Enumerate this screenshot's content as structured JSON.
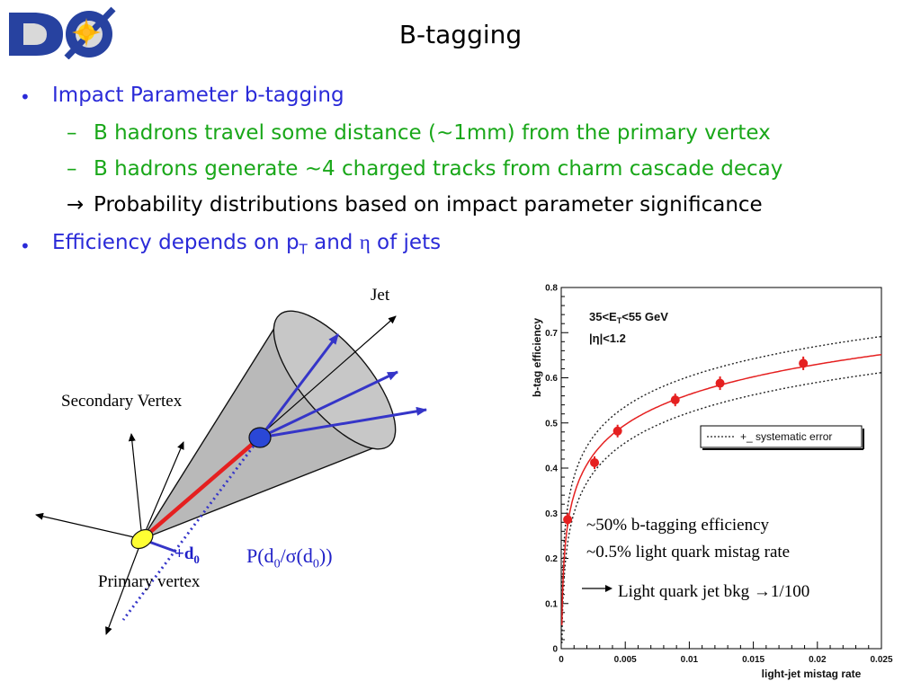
{
  "slide": {
    "title": "B-tagging",
    "bullets": {
      "b1": "Impact Parameter b-tagging",
      "b1_sub1": "B hadrons travel some distance (~1mm) from the primary vertex",
      "b1_sub2": "B hadrons generate ~4 charged tracks from charm cascade decay",
      "b1_sub3": "Probability distributions based on impact parameter significance",
      "b2_pre": "Efficiency depends on p",
      "b2_sub": "T",
      "b2_mid": " and ",
      "b2_eta": "η",
      "b2_post": " of jets"
    },
    "bullet_symbol": "•",
    "dash_symbol": "–",
    "arrow_symbol": "→"
  },
  "diagram": {
    "jet_label": "Jet",
    "secondary_vertex_label": "Secondary Vertex",
    "primary_vertex_label": "Primary vertex",
    "d0_label": "+d",
    "d0_sub": "0",
    "prob_pre": "P(d",
    "prob_sub1": "0",
    "prob_mid": "/σ(d",
    "prob_sub2": "0",
    "prob_post": "))"
  },
  "annotations": {
    "line1": "~50% b-tagging efficiency",
    "line2": "~0.5% light quark mistag rate",
    "line3_pre": "Light quark jet bkg ",
    "line3_post": "1/100"
  },
  "colors": {
    "title": "#000000",
    "bullet_blue": "#2a2ad8",
    "bullet_green": "#19a719",
    "curve_red": "#e02020",
    "track_blue": "#3535c8",
    "cone_gray": "#b9b9b9"
  },
  "chart_data": {
    "type": "scatter",
    "xlabel": "light-jet mistag rate",
    "ylabel": "b-tag efficiency",
    "xlim": [
      0,
      0.025
    ],
    "ylim": [
      0,
      0.8
    ],
    "xticks": [
      "0",
      "0.005",
      "0.01",
      "0.015",
      "0.02",
      "0.025"
    ],
    "xtick_values": [
      0,
      0.005,
      0.01,
      0.015,
      0.02,
      0.025
    ],
    "yticks": [
      "0",
      "0.1",
      "0.2",
      "0.3",
      "0.4",
      "0.5",
      "0.6",
      "0.7",
      "0.8"
    ],
    "ytick_values": [
      0,
      0.1,
      0.2,
      0.3,
      0.4,
      0.5,
      0.6,
      0.7,
      0.8
    ],
    "annotation_line1_pre": "35<E",
    "annotation_line1_sub": "T",
    "annotation_line1_post": "<55 GeV",
    "annotation_line2": "|η|<1.2",
    "legend": "+_ systematic error",
    "legend_position": "center-right",
    "series": [
      {
        "values": [
          {
            "x": 0.0005,
            "y": 0.286,
            "yerr": 0.014
          },
          {
            "x": 0.0026,
            "y": 0.412,
            "yerr": 0.014
          },
          {
            "x": 0.0044,
            "y": 0.482,
            "yerr": 0.014
          },
          {
            "x": 0.0089,
            "y": 0.551,
            "yerr": 0.014
          },
          {
            "x": 0.0124,
            "y": 0.588,
            "yerr": 0.015
          },
          {
            "x": 0.0189,
            "y": 0.632,
            "yerr": 0.015
          }
        ]
      }
    ]
  }
}
